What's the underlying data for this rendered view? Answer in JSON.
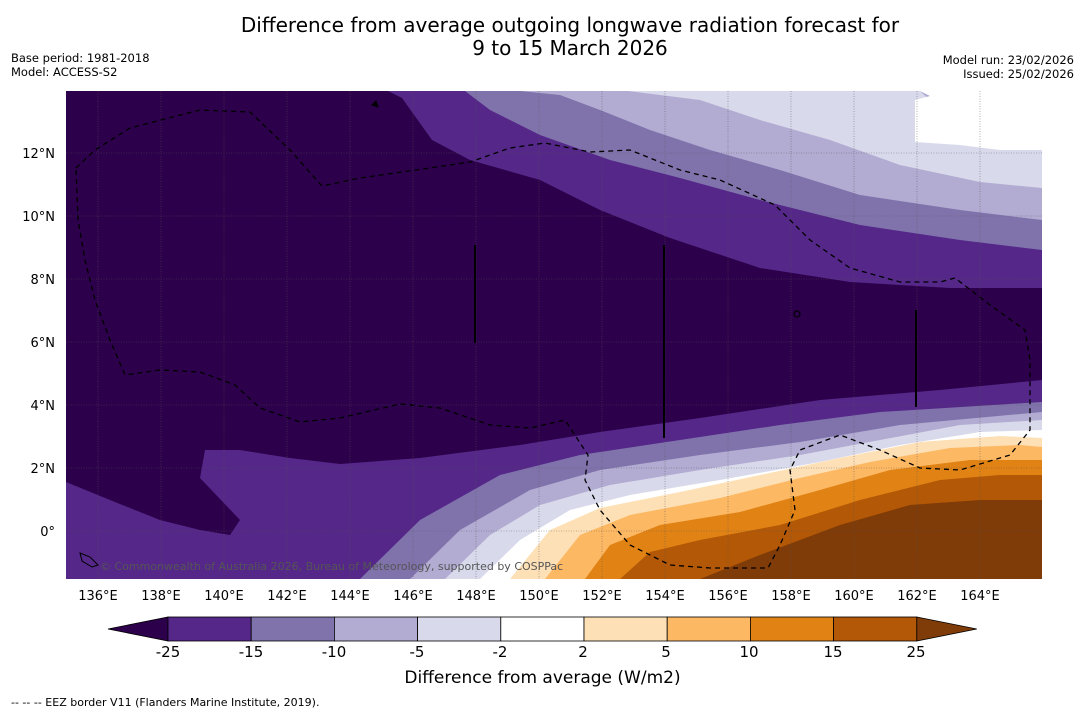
{
  "title": {
    "line1": "Difference from average outgoing longwave radiation forecast for",
    "line2": "9 to 15 March 2026"
  },
  "meta": {
    "base_period": "Base period: 1981-2018",
    "model": "Model: ACCESS-S2",
    "model_run": "Model run: 23/02/2026",
    "issued": "Issued: 25/02/2026"
  },
  "map": {
    "credit": "© Commonwealth of Australia 2026, Bureau of Meteorology, supported by COSPPac",
    "lat_labels": [
      "12°N",
      "10°N",
      "8°N",
      "6°N",
      "4°N",
      "2°N",
      "0°"
    ],
    "lon_labels": [
      "136°E",
      "138°E",
      "140°E",
      "142°E",
      "144°E",
      "146°E",
      "148°E",
      "150°E",
      "152°E",
      "154°E",
      "156°E",
      "158°E",
      "160°E",
      "162°E",
      "164°E"
    ]
  },
  "colorbar": {
    "title": "Difference from average (W/m2)",
    "tick_labels": [
      "-25",
      "-15",
      "-10",
      "-5",
      "-2",
      "2",
      "5",
      "10",
      "15",
      "25"
    ],
    "colors": [
      "#2d004b",
      "#542788",
      "#8073ac",
      "#b2abd2",
      "#d8daeb",
      "#ffffff",
      "#fee0b6",
      "#fdb863",
      "#e08214",
      "#b35806",
      "#7f3b08"
    ]
  },
  "footer": {
    "legend_note": "--  --  -- EEZ border V11 (Flanders Marine Institute, 2019)."
  }
}
